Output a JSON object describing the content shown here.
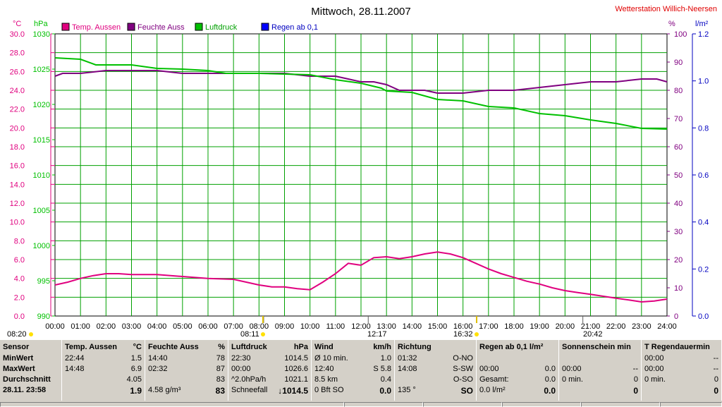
{
  "chart_data": {
    "type": "line",
    "title": "Mittwoch, 28.11.2007",
    "station": "Wetterstation Willich-Neersen",
    "x_ticks": [
      "00:00",
      "01:00",
      "02:00",
      "03:00",
      "04:00",
      "05:00",
      "06:00",
      "07:00",
      "08:00",
      "09:00",
      "10:00",
      "11:00",
      "12:00",
      "13:00",
      "14:00",
      "15:00",
      "16:00",
      "17:00",
      "18:00",
      "19:00",
      "20:00",
      "21:00",
      "22:00",
      "23:00",
      "24:00"
    ],
    "axes": {
      "temp": {
        "unit": "°C",
        "min": 0,
        "max": 30,
        "ticks": [
          "0.0",
          "2.0",
          "4.0",
          "6.0",
          "8.0",
          "10.0",
          "12.0",
          "14.0",
          "16.0",
          "18.0",
          "20.0",
          "22.0",
          "24.0",
          "26.0",
          "28.0",
          "30.0"
        ],
        "color": "#e0007f"
      },
      "pressure": {
        "unit": "hPa",
        "min": 990,
        "max": 1030,
        "ticks": [
          "990",
          "995",
          "1000",
          "1005",
          "1010",
          "1015",
          "1020",
          "1025",
          "1030"
        ],
        "color": "#00c000"
      },
      "humidity": {
        "unit": "%",
        "min": 0,
        "max": 100,
        "ticks": [
          "0",
          "10",
          "20",
          "30",
          "40",
          "50",
          "60",
          "70",
          "80",
          "90",
          "100"
        ],
        "color": "#800080"
      },
      "rain": {
        "unit": "l/m²",
        "min": 0,
        "max": 1.2,
        "ticks": [
          "0.0",
          "0.2",
          "0.4",
          "0.6",
          "0.8",
          "1.0",
          "1.2"
        ],
        "color": "#0000c0"
      }
    },
    "series": [
      {
        "name": "Temp. Aussen",
        "axis": "temp",
        "color": "#e0007f",
        "x": [
          0,
          0.5,
          1,
          1.5,
          2,
          2.5,
          3,
          4,
          5,
          6,
          7,
          7.5,
          8,
          8.5,
          9,
          9.5,
          10,
          10.5,
          11,
          11.5,
          12,
          12.5,
          13,
          13.5,
          14,
          14.5,
          15,
          15.5,
          16,
          16.5,
          17,
          17.5,
          18,
          18.5,
          19,
          19.5,
          20,
          20.5,
          21,
          21.5,
          22,
          22.5,
          23,
          23.5,
          24
        ],
        "y": [
          3.3,
          3.6,
          4.0,
          4.3,
          4.5,
          4.5,
          4.4,
          4.4,
          4.2,
          4.0,
          3.9,
          3.6,
          3.3,
          3.1,
          3.1,
          2.9,
          2.8,
          3.6,
          4.5,
          5.6,
          5.4,
          6.2,
          6.3,
          6.1,
          6.3,
          6.6,
          6.8,
          6.6,
          6.2,
          5.6,
          5.0,
          4.5,
          4.1,
          3.7,
          3.4,
          3.0,
          2.7,
          2.5,
          2.3,
          2.1,
          1.9,
          1.7,
          1.5,
          1.6,
          1.8
        ]
      },
      {
        "name": "Feuchte Auss",
        "axis": "humidity",
        "color": "#800080",
        "x": [
          0,
          0.3,
          1,
          2,
          2.7,
          3,
          4,
          5,
          6,
          7,
          8,
          9,
          10,
          11,
          11.5,
          12,
          12.5,
          13,
          13.5,
          14,
          14.5,
          15,
          16,
          17,
          18,
          19,
          20,
          21,
          22,
          23,
          23.6,
          24
        ],
        "y": [
          85,
          86,
          86,
          87,
          87,
          87,
          87,
          86,
          86,
          86,
          86,
          86,
          85,
          85,
          84,
          83,
          83,
          82,
          80,
          80,
          80,
          79,
          79,
          80,
          80,
          81,
          82,
          83,
          83,
          84,
          84,
          83
        ]
      },
      {
        "name": "Luftdruck",
        "axis": "pressure",
        "color": "#00c000",
        "x": [
          0,
          1,
          1.6,
          2,
          3,
          4,
          5,
          6,
          6.7,
          7,
          8,
          9,
          10,
          11,
          12,
          12.8,
          13,
          14,
          15,
          16,
          17,
          18,
          19,
          20,
          21,
          22,
          23,
          24
        ],
        "y": [
          1026.6,
          1026.4,
          1025.6,
          1025.6,
          1025.6,
          1025.1,
          1025.0,
          1024.8,
          1024.4,
          1024.4,
          1024.4,
          1024.3,
          1024.2,
          1023.5,
          1023.0,
          1022.3,
          1021.9,
          1021.7,
          1020.7,
          1020.5,
          1019.7,
          1019.5,
          1018.7,
          1018.4,
          1017.8,
          1017.3,
          1016.6,
          1016.5
        ]
      },
      {
        "name": "Regen ab 0,1",
        "axis": "rain",
        "color": "#0000ff",
        "x": [],
        "y": []
      }
    ],
    "markers": {
      "sunrise": "08:20",
      "sunrise_mark": "08:11",
      "noon": "12:17",
      "sunset": "16:32",
      "evening": "20:42"
    },
    "grid": true
  },
  "panel": [
    {
      "h": "Sensor",
      "u": "",
      "rows": [
        [
          "MinWert",
          ""
        ],
        [
          "MaxWert",
          ""
        ],
        [
          "Durchschnitt",
          ""
        ],
        [
          "28.11. 23:58",
          ""
        ]
      ],
      "bold": true
    },
    {
      "h": "Temp. Aussen",
      "u": "°C",
      "rows": [
        [
          "22:44",
          "1.5"
        ],
        [
          "14:48",
          "6.9"
        ],
        [
          "",
          "4.05"
        ],
        [
          "",
          "1.9"
        ]
      ]
    },
    {
      "h": "Feuchte Auss",
      "u": "%",
      "rows": [
        [
          "14:40",
          "78"
        ],
        [
          "02:32",
          "87"
        ],
        [
          "",
          "83"
        ],
        [
          "4.58 g/m³",
          "83"
        ]
      ]
    },
    {
      "h": "Luftdruck",
      "u": "hPa",
      "rows": [
        [
          "22:30",
          "1014.5"
        ],
        [
          "00:00",
          "1026.6"
        ],
        [
          "^2.0hPa/h",
          "1021.1"
        ],
        [
          "Schneefall",
          "↓1014.5"
        ]
      ]
    },
    {
      "h": "Wind",
      "u": "km/h",
      "rows": [
        [
          "Ø 10 min.",
          "1.0"
        ],
        [
          "12:40",
          "S 5.8"
        ],
        [
          "8.5 km",
          "0.4"
        ],
        [
          "0 Bft SO",
          "0.0"
        ]
      ]
    },
    {
      "h": "Richtung",
      "u": "",
      "rows": [
        [
          "01:32",
          "O-NO"
        ],
        [
          "14:08",
          "S-SW"
        ],
        [
          "",
          "O-SO"
        ],
        [
          "135 °",
          "SO"
        ]
      ]
    },
    {
      "h": "Regen ab 0,1  l/m²",
      "u": "",
      "rows": [
        [
          "",
          ""
        ],
        [
          "00:00",
          "0.0"
        ],
        [
          "Gesamt:",
          "0.0"
        ],
        [
          "0.0 l/m²",
          "0.0"
        ]
      ]
    },
    {
      "h": "Sonnenschein min",
      "u": "",
      "rows": [
        [
          "",
          ""
        ],
        [
          "00:00",
          "--"
        ],
        [
          "0 min.",
          "0"
        ],
        [
          "",
          "0"
        ]
      ]
    },
    {
      "h": "T Regendauermin",
      "u": "",
      "rows": [
        [
          "00:00",
          "--"
        ],
        [
          "00:00",
          "--"
        ],
        [
          "0 min.",
          "0"
        ],
        [
          "",
          "0"
        ]
      ]
    }
  ]
}
